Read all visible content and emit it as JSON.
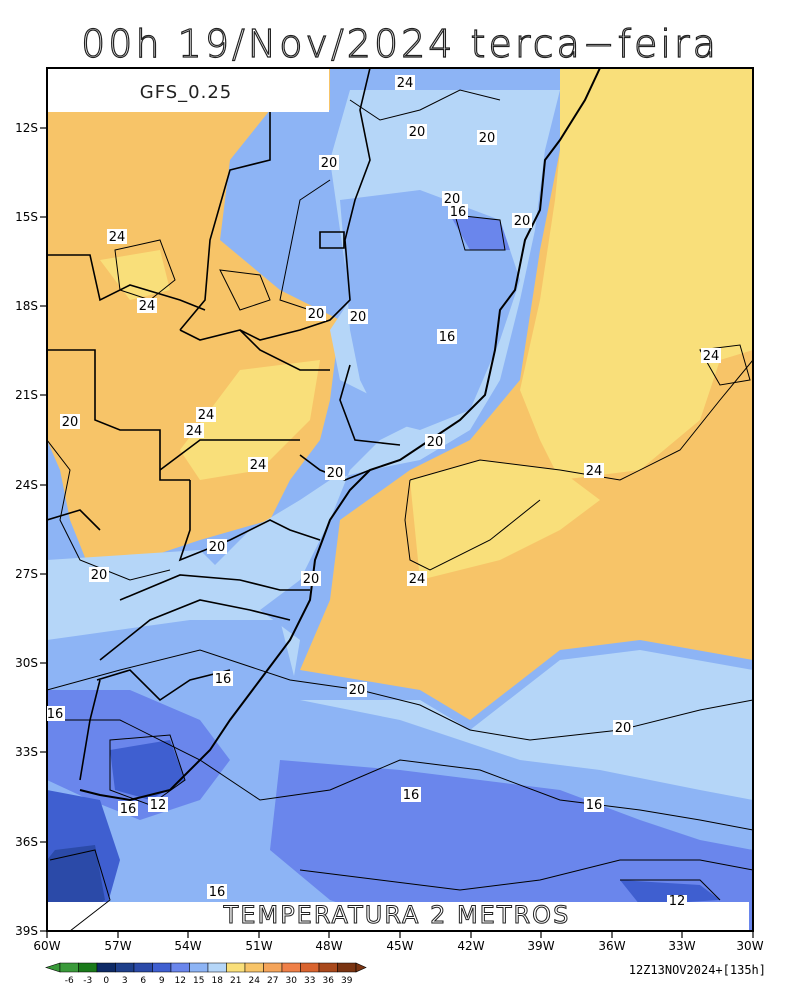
{
  "title": "00h 19/Nov/2024 terca−feira",
  "model_label": "GFS_0.25",
  "field_label": "TEMPERATURA 2 METROS",
  "run_info": "12Z13NOV2024+[135h]",
  "lat_ticks": [
    "12S",
    "15S",
    "18S",
    "21S",
    "24S",
    "27S",
    "30S",
    "33S",
    "36S",
    "39S"
  ],
  "lon_ticks": [
    "60W",
    "57W",
    "54W",
    "51W",
    "48W",
    "45W",
    "42W",
    "39W",
    "36W",
    "33W",
    "30W"
  ],
  "colorbar": {
    "ticks": [
      "-6",
      "-3",
      "0",
      "3",
      "6",
      "9",
      "12",
      "15",
      "18",
      "21",
      "24",
      "27",
      "30",
      "33",
      "36",
      "39"
    ],
    "colors": [
      "#3a9a3a",
      "#1a7a1a",
      "#0e2a66",
      "#1e3f8a",
      "#2b4aa8",
      "#3f5fd0",
      "#6a86ec",
      "#8db4f5",
      "#b5d6f8",
      "#f9df7a",
      "#f7c468",
      "#f4a45a",
      "#ef8048",
      "#d9642f",
      "#a9491c",
      "#7a3412"
    ]
  },
  "contour_labels": [
    {
      "text": "24",
      "id": "c1"
    },
    {
      "text": "20",
      "id": "c2"
    },
    {
      "text": "20",
      "id": "c3"
    },
    {
      "text": "20",
      "id": "c4"
    },
    {
      "text": "20",
      "id": "c5"
    },
    {
      "text": "16",
      "id": "c6"
    },
    {
      "text": "20",
      "id": "c7"
    },
    {
      "text": "24",
      "id": "c8"
    },
    {
      "text": "24",
      "id": "c9"
    },
    {
      "text": "20",
      "id": "c10"
    },
    {
      "text": "20",
      "id": "c11"
    },
    {
      "text": "16",
      "id": "c12"
    },
    {
      "text": "24",
      "id": "c13"
    },
    {
      "text": "20",
      "id": "c14"
    },
    {
      "text": "24",
      "id": "c15"
    },
    {
      "text": "24",
      "id": "c16"
    },
    {
      "text": "24",
      "id": "c17"
    },
    {
      "text": "20",
      "id": "c18"
    },
    {
      "text": "20",
      "id": "c19"
    },
    {
      "text": "24",
      "id": "c20"
    },
    {
      "text": "20",
      "id": "c21"
    },
    {
      "text": "24",
      "id": "c22"
    },
    {
      "text": "20",
      "id": "c23"
    },
    {
      "text": "20",
      "id": "c24"
    },
    {
      "text": "16",
      "id": "c25"
    },
    {
      "text": "20",
      "id": "c26"
    },
    {
      "text": "16",
      "id": "c27"
    },
    {
      "text": "20",
      "id": "c28"
    },
    {
      "text": "16",
      "id": "c29"
    },
    {
      "text": "12",
      "id": "c30"
    },
    {
      "text": "16",
      "id": "c31"
    },
    {
      "text": "16",
      "id": "c32"
    },
    {
      "text": "16",
      "id": "c33"
    },
    {
      "text": "12",
      "id": "c34"
    }
  ]
}
